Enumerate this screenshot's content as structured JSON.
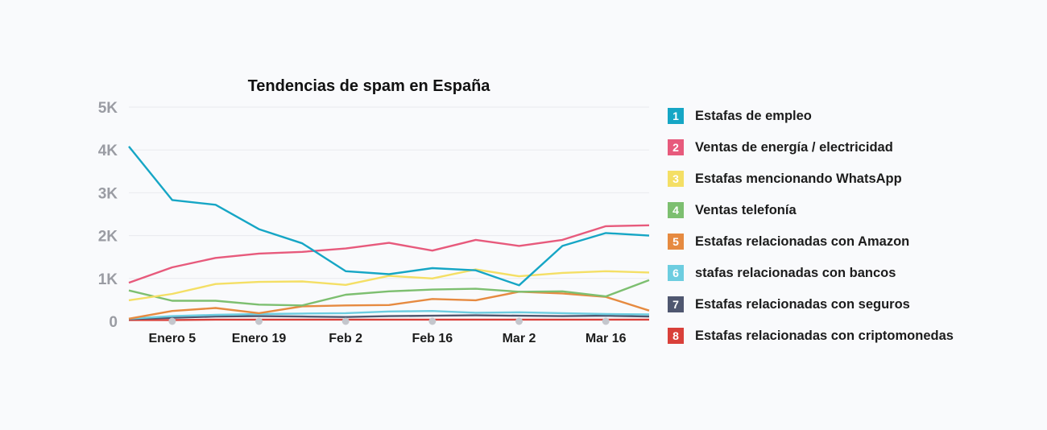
{
  "chart_data": {
    "type": "line",
    "title": "Tendencias de spam en España",
    "xlabel": "",
    "ylabel": "",
    "ylim": [
      0,
      5000
    ],
    "y_ticks": [
      "0",
      "1K",
      "2K",
      "3K",
      "4K",
      "5K"
    ],
    "x_tick_labels": [
      "Enero 5",
      "Enero 19",
      "Feb 2",
      "Feb 16",
      "Mar 2",
      "Mar 16"
    ],
    "grid": true,
    "legend_position": "right",
    "series": [
      {
        "name": "Estafas de empleo",
        "color": "#16a6c5",
        "values": [
          4080,
          2830,
          2720,
          2150,
          1820,
          1170,
          1100,
          1240,
          1190,
          840,
          1760,
          2060,
          2000
        ]
      },
      {
        "name": "Ventas de energía / electricidad",
        "color": "#e75a7c",
        "values": [
          900,
          1260,
          1480,
          1580,
          1620,
          1700,
          1830,
          1650,
          1900,
          1760,
          1900,
          2220,
          2240
        ]
      },
      {
        "name": "Estafas mencionando WhatsApp",
        "color": "#f4df65",
        "values": [
          490,
          640,
          870,
          920,
          930,
          850,
          1060,
          1000,
          1210,
          1050,
          1130,
          1170,
          1140
        ]
      },
      {
        "name": "Ventas telefonía",
        "color": "#7dbf70",
        "values": [
          720,
          480,
          480,
          390,
          370,
          620,
          700,
          740,
          760,
          690,
          700,
          580,
          960
        ]
      },
      {
        "name": "Estafas relacionadas con Amazon",
        "color": "#e68a40",
        "values": [
          60,
          240,
          310,
          190,
          350,
          370,
          380,
          520,
          490,
          690,
          650,
          570,
          250
        ]
      },
      {
        "name": "stafas relacionadas con bancos",
        "color": "#6dcde0",
        "values": [
          60,
          120,
          150,
          170,
          180,
          190,
          230,
          240,
          200,
          210,
          190,
          170,
          160
        ]
      },
      {
        "name": "Estafas relacionadas con seguros",
        "color": "#4f5770",
        "values": [
          50,
          80,
          110,
          120,
          110,
          100,
          120,
          130,
          140,
          130,
          120,
          130,
          110
        ]
      },
      {
        "name": "Estafas relacionadas con criptomonedas",
        "color": "#d9403a",
        "values": [
          30,
          30,
          40,
          40,
          40,
          40,
          40,
          40,
          40,
          40,
          40,
          40,
          40
        ]
      }
    ]
  }
}
